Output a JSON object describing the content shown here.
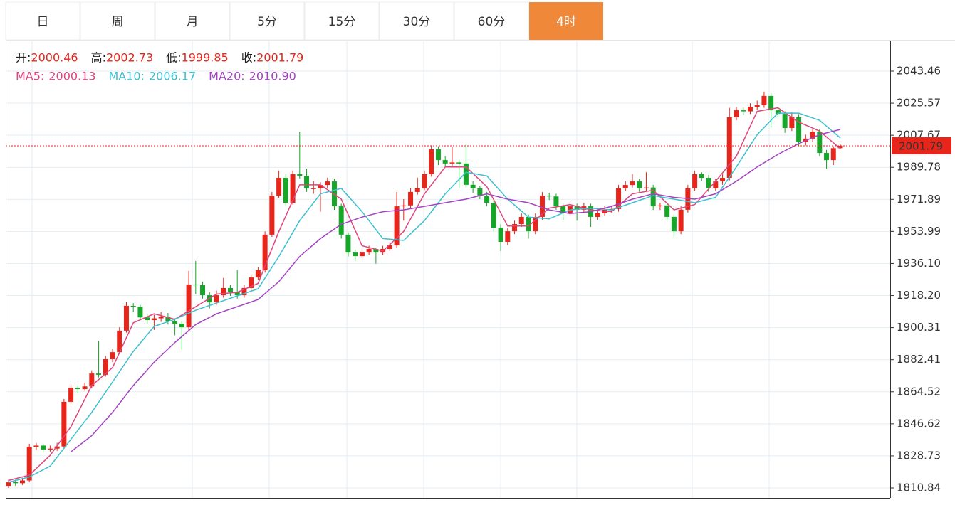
{
  "tabs": [
    "日",
    "周",
    "月",
    "5分",
    "15分",
    "30分",
    "60分",
    "4时"
  ],
  "active_tab": 7,
  "info": [
    {
      "label": "开:",
      "value": "2000.46"
    },
    {
      "label": "高:",
      "value": "2002.73"
    },
    {
      "label": "低:",
      "value": "1999.85"
    },
    {
      "label": "收:",
      "value": "2001.79"
    }
  ],
  "chart_data": {
    "type": "candlestick",
    "up_color": "#e8251b",
    "down_color": "#17a62a",
    "ylim": [
      1805.28,
      2060.13
    ],
    "yticks": [
      2043.46,
      2025.57,
      2007.67,
      1989.78,
      1971.89,
      1953.99,
      {
        "value": 1936.1,
        "label": "1936.10"
      },
      {
        "value": 1918.2,
        "label": "1918.20"
      },
      1900.31,
      1882.41,
      1864.52,
      1846.62,
      1828.73,
      1810.84
    ],
    "current_price": 2001.79,
    "current_color": "#e8251b",
    "ohlc": [
      [
        1812.0,
        1815.5,
        1810.8,
        1814.0
      ],
      [
        1814.0,
        1815.5,
        1812.0,
        1813.5
      ],
      [
        1813.5,
        1816.5,
        1812.5,
        1815.0
      ],
      [
        1815.0,
        1835.5,
        1814.0,
        1833.8
      ],
      [
        1833.8,
        1836.0,
        1832.0,
        1834.5
      ],
      [
        1834.5,
        1835.5,
        1830.5,
        1832.3
      ],
      [
        1832.3,
        1834.5,
        1831.0,
        1832.8
      ],
      [
        1832.8,
        1836.0,
        1831.5,
        1834.0
      ],
      [
        1834.0,
        1860.5,
        1833.0,
        1858.9
      ],
      [
        1858.9,
        1868.5,
        1857.5,
        1866.8
      ],
      [
        1866.8,
        1868.0,
        1864.0,
        1866.0
      ],
      [
        1866.0,
        1869.5,
        1865.0,
        1867.5
      ],
      [
        1867.5,
        1876.5,
        1866.5,
        1874.7
      ],
      [
        1874.7,
        1893.0,
        1872.5,
        1874.0
      ],
      [
        1874.0,
        1884.5,
        1873.0,
        1882.7
      ],
      [
        1882.7,
        1888.5,
        1881.0,
        1886.6
      ],
      [
        1886.6,
        1900.5,
        1885.5,
        1898.6
      ],
      [
        1898.6,
        1914.5,
        1897.5,
        1912.5
      ],
      [
        1912.5,
        1914.0,
        1909.0,
        1912.0
      ],
      [
        1912.0,
        1913.0,
        1904.5,
        1906.0
      ],
      [
        1906.0,
        1908.0,
        1902.5,
        1904.5
      ],
      [
        1904.5,
        1907.5,
        1899.0,
        1905.5
      ],
      [
        1905.5,
        1909.0,
        1903.5,
        1906.5
      ],
      [
        1906.5,
        1908.5,
        1902.0,
        1904.0
      ],
      [
        1904.0,
        1905.5,
        1896.0,
        1902.5
      ],
      [
        1902.5,
        1904.0,
        1888.0,
        1900.5
      ],
      [
        1900.5,
        1932.0,
        1899.0,
        1924.4
      ],
      [
        1924.4,
        1937.5,
        1919.0,
        1924.0
      ],
      [
        1924.0,
        1926.0,
        1916.5,
        1918.4
      ],
      [
        1918.4,
        1920.0,
        1911.0,
        1914.4
      ],
      [
        1914.4,
        1921.0,
        1913.0,
        1918.4
      ],
      [
        1918.4,
        1928.0,
        1917.0,
        1922.4
      ],
      [
        1922.4,
        1924.0,
        1918.0,
        1920.4
      ],
      [
        1920.4,
        1932.5,
        1916.5,
        1918.4
      ],
      [
        1918.4,
        1924.0,
        1917.0,
        1922.4
      ],
      [
        1922.4,
        1930.0,
        1921.0,
        1928.3
      ],
      [
        1928.3,
        1934.0,
        1927.0,
        1932.3
      ],
      [
        1932.3,
        1954.0,
        1931.0,
        1952.2
      ],
      [
        1952.2,
        1976.0,
        1951.0,
        1974.0
      ],
      [
        1974.0,
        1988.0,
        1972.5,
        1983.9
      ],
      [
        1983.9,
        1986.0,
        1968.0,
        1970.0
      ],
      [
        1970.0,
        1988.0,
        1969.0,
        1985.9
      ],
      [
        1985.9,
        2009.7,
        1983.5,
        1985.0
      ],
      [
        1985.0,
        1989.0,
        1976.0,
        1978.0
      ],
      [
        1978.0,
        1982.0,
        1975.0,
        1978.0
      ],
      [
        1978.0,
        1981.5,
        1965.0,
        1979.9
      ],
      [
        1979.9,
        1984.0,
        1978.0,
        1981.9
      ],
      [
        1981.9,
        1983.5,
        1966.0,
        1968.0
      ],
      [
        1968.0,
        1969.5,
        1950.0,
        1952.2
      ],
      [
        1952.2,
        1953.5,
        1940.0,
        1942.2
      ],
      [
        1942.2,
        1944.0,
        1937.5,
        1940.2
      ],
      [
        1940.2,
        1944.5,
        1939.0,
        1942.2
      ],
      [
        1942.2,
        1946.0,
        1941.0,
        1944.2
      ],
      [
        1944.2,
        1945.0,
        1936.0,
        1942.2
      ],
      [
        1942.2,
        1946.0,
        1941.0,
        1944.2
      ],
      [
        1944.2,
        1948.0,
        1943.0,
        1946.2
      ],
      [
        1946.2,
        1976.0,
        1945.0,
        1968.0
      ],
      [
        1968.0,
        1972.0,
        1960.0,
        1968.5
      ],
      [
        1968.5,
        1978.0,
        1967.0,
        1976.0
      ],
      [
        1976.0,
        1984.0,
        1974.5,
        1978.0
      ],
      [
        1978.0,
        1988.0,
        1977.0,
        1985.9
      ],
      [
        1985.9,
        2002.0,
        1984.5,
        1999.8
      ],
      [
        1999.8,
        2001.5,
        1991.0,
        1993.8
      ],
      [
        1993.8,
        1996.0,
        1990.0,
        1991.9
      ],
      [
        1991.9,
        2001.0,
        1990.5,
        1992.5
      ],
      [
        1992.5,
        1994.0,
        1978.0,
        1991.9
      ],
      [
        1991.9,
        2002.5,
        1978.5,
        1980.0
      ],
      [
        1980.0,
        1982.0,
        1975.5,
        1978.0
      ],
      [
        1978.0,
        1979.5,
        1972.0,
        1974.0
      ],
      [
        1974.0,
        1976.0,
        1968.0,
        1970.0
      ],
      [
        1970.0,
        1971.5,
        1954.0,
        1956.1
      ],
      [
        1956.1,
        1958.0,
        1943.0,
        1948.2
      ],
      [
        1948.2,
        1956.0,
        1946.5,
        1954.1
      ],
      [
        1954.1,
        1960.0,
        1952.5,
        1958.1
      ],
      [
        1958.1,
        1964.0,
        1956.5,
        1962.1
      ],
      [
        1962.1,
        1963.5,
        1950.0,
        1954.1
      ],
      [
        1954.1,
        1964.0,
        1952.5,
        1962.1
      ],
      [
        1962.1,
        1976.0,
        1960.5,
        1974.0
      ],
      [
        1974.0,
        1975.5,
        1971.5,
        1973.5
      ],
      [
        1973.5,
        1975.0,
        1966.0,
        1968.0
      ],
      [
        1968.0,
        1969.5,
        1960.5,
        1964.1
      ],
      [
        1964.1,
        1970.0,
        1962.5,
        1968.0
      ],
      [
        1968.0,
        1969.5,
        1960.0,
        1966.1
      ],
      [
        1966.1,
        1970.0,
        1964.5,
        1968.0
      ],
      [
        1968.0,
        1969.5,
        1956.5,
        1962.1
      ],
      [
        1962.1,
        1966.0,
        1960.5,
        1964.1
      ],
      [
        1964.1,
        1968.0,
        1962.5,
        1966.1
      ],
      [
        1966.1,
        1968.5,
        1964.5,
        1966.5
      ],
      [
        1966.5,
        1980.0,
        1965.0,
        1978.0
      ],
      [
        1978.0,
        1982.0,
        1976.5,
        1979.9
      ],
      [
        1979.9,
        1986.0,
        1978.5,
        1981.9
      ],
      [
        1981.9,
        1983.5,
        1976.0,
        1978.0
      ],
      [
        1978.0,
        1987.0,
        1976.5,
        1978.5
      ],
      [
        1978.5,
        1980.0,
        1966.0,
        1968.0
      ],
      [
        1968.0,
        1970.0,
        1966.0,
        1968.5
      ],
      [
        1968.5,
        1970.0,
        1960.0,
        1962.1
      ],
      [
        1962.1,
        1963.5,
        1950.5,
        1954.1
      ],
      [
        1954.1,
        1968.0,
        1952.5,
        1966.1
      ],
      [
        1966.1,
        1980.0,
        1964.5,
        1978.0
      ],
      [
        1978.0,
        1988.0,
        1976.5,
        1985.9
      ],
      [
        1985.9,
        1987.0,
        1982.0,
        1983.9
      ],
      [
        1983.9,
        1985.5,
        1976.0,
        1978.0
      ],
      [
        1978.0,
        1983.5,
        1976.5,
        1981.9
      ],
      [
        1981.9,
        1986.0,
        1980.0,
        1983.9
      ],
      [
        1983.9,
        2023.0,
        1982.5,
        2017.7
      ],
      [
        2017.7,
        2023.5,
        2016.0,
        2021.6
      ],
      [
        2021.6,
        2023.0,
        2019.0,
        2021.0
      ],
      [
        2021.0,
        2025.5,
        2019.5,
        2023.6
      ],
      [
        2023.6,
        2027.0,
        2022.0,
        2024.5
      ],
      [
        2024.5,
        2032.0,
        2023.0,
        2029.6
      ],
      [
        2029.6,
        2031.0,
        2012.0,
        2021.6
      ],
      [
        2021.6,
        2023.0,
        2017.5,
        2019.6
      ],
      [
        2019.6,
        2021.0,
        2009.0,
        2011.7
      ],
      [
        2011.7,
        2020.5,
        2010.0,
        2017.7
      ],
      [
        2017.7,
        2019.5,
        2001.5,
        2003.8
      ],
      [
        2003.8,
        2008.0,
        2002.0,
        2005.8
      ],
      [
        2005.8,
        2011.0,
        2004.0,
        2009.7
      ],
      [
        2009.7,
        2011.0,
        1996.0,
        1997.8
      ],
      [
        1997.8,
        1999.5,
        1989.0,
        1993.8
      ],
      [
        1993.8,
        2001.5,
        1991.0,
        2000.46
      ],
      [
        2000.46,
        2002.73,
        1999.85,
        2001.79
      ]
    ],
    "series": [
      {
        "name": "MA5:",
        "current": "2000.13",
        "color": "#e0457b",
        "x": [
          0,
          3,
          6,
          9,
          12,
          15,
          18,
          21,
          24,
          27,
          30,
          33,
          36,
          39,
          42,
          45,
          48,
          51,
          54,
          57,
          60,
          63,
          66,
          69,
          72,
          75,
          78,
          81,
          84,
          87,
          90,
          93,
          96,
          99,
          102,
          105,
          108,
          111,
          114,
          117,
          120
        ],
        "values": [
          1815,
          1818,
          1829,
          1845,
          1868,
          1878,
          1903,
          1908,
          1905,
          1912,
          1919,
          1920,
          1925,
          1954,
          1980,
          1980,
          1972,
          1946,
          1943,
          1954,
          1975,
          1990,
          1990,
          1979,
          1957,
          1957,
          1967,
          1969,
          1966,
          1965,
          1975,
          1977,
          1966,
          1969,
          1982,
          1996,
          2021,
          2023,
          2015,
          2010,
          2000.13
        ]
      },
      {
        "name": "MA10:",
        "current": "2006.17",
        "color": "#3dbfd0",
        "x": [
          0,
          3,
          6,
          9,
          12,
          15,
          18,
          21,
          24,
          27,
          30,
          33,
          36,
          39,
          42,
          45,
          48,
          51,
          54,
          57,
          60,
          63,
          66,
          69,
          72,
          75,
          78,
          81,
          84,
          87,
          90,
          93,
          96,
          99,
          102,
          105,
          108,
          111,
          114,
          117,
          120
        ],
        "values": [
          1814,
          1817,
          1823,
          1838,
          1853,
          1870,
          1887,
          1901,
          1905,
          1910,
          1914,
          1918,
          1922,
          1940,
          1960,
          1975,
          1978,
          1965,
          1950,
          1949,
          1960,
          1975,
          1987,
          1985,
          1972,
          1962,
          1961,
          1966,
          1967,
          1966,
          1970,
          1974,
          1972,
          1970,
          1973,
          1990,
          2008,
          2020,
          2020,
          2016,
          2006.17
        ]
      },
      {
        "name": "MA20:",
        "current": "2010.90",
        "color": "#a443c2",
        "x": [
          9,
          12,
          15,
          18,
          21,
          24,
          27,
          30,
          33,
          36,
          39,
          42,
          45,
          48,
          51,
          54,
          57,
          60,
          63,
          66,
          69,
          72,
          75,
          78,
          81,
          84,
          87,
          90,
          93,
          96,
          99,
          102,
          105,
          108,
          111,
          114,
          117,
          120
        ],
        "values": [
          1831,
          1840,
          1853,
          1868,
          1881,
          1892,
          1902,
          1908,
          1912,
          1916,
          1926,
          1940,
          1950,
          1958,
          1962,
          1965,
          1966,
          1968,
          1970,
          1972,
          1975,
          1972,
          1970,
          1966,
          1964,
          1965,
          1968,
          1972,
          1975,
          1973,
          1972,
          1975,
          1982,
          1990,
          1997,
          2003,
          2008,
          2010.9
        ]
      }
    ]
  }
}
